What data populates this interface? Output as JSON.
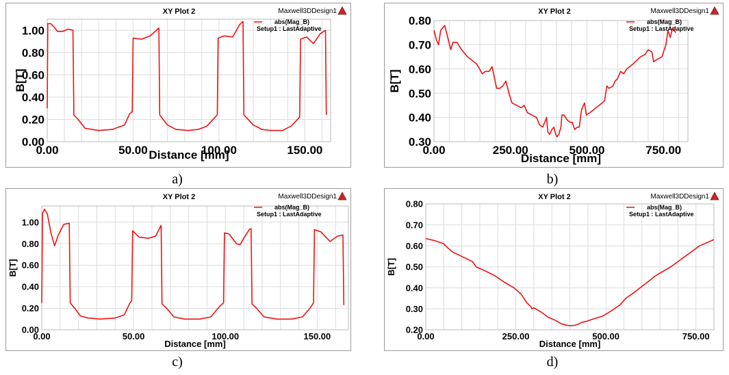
{
  "colors": {
    "series": "#ee1111",
    "grid": "#dcdcdc",
    "border": "#9a9a9a"
  },
  "chart_data": [
    {
      "type": "line",
      "panel_label": "a)",
      "title": "XY Plot 2",
      "brand": "Maxwell3DDesign1",
      "logo_icon": "ansys-triangle-logo",
      "legend": {
        "series_label": "abs(Mag_B)",
        "setup_label": "Setup1 : LastAdaptive",
        "placement": "top-right"
      },
      "xlabel": "Distance [mm]",
      "ylabel": "B[T]",
      "xlim": [
        0,
        165
      ],
      "ylim": [
        0,
        1.1
      ],
      "xticks": [
        0,
        50,
        100,
        150
      ],
      "xtick_labels": [
        "0.00",
        "50.00",
        "100.00",
        "150.00"
      ],
      "yticks": [
        0,
        0.2,
        0.4,
        0.6,
        0.8,
        1.0
      ],
      "ytick_labels": [
        "0.00",
        "0.20",
        "0.40",
        "0.60",
        "0.80",
        "1.00"
      ],
      "grid": true,
      "series": [
        {
          "points": [
            [
              0,
              0.3
            ],
            [
              0.3,
              1.06
            ],
            [
              2,
              1.06
            ],
            [
              4,
              1.03
            ],
            [
              6,
              0.99
            ],
            [
              9,
              0.99
            ],
            [
              12,
              1.01
            ],
            [
              15,
              1.0
            ],
            [
              15.5,
              0.24
            ],
            [
              18,
              0.2
            ],
            [
              22,
              0.12
            ],
            [
              30,
              0.1
            ],
            [
              38,
              0.11
            ],
            [
              45,
              0.15
            ],
            [
              48,
              0.25
            ],
            [
              49.5,
              0.27
            ],
            [
              50,
              0.93
            ],
            [
              55,
              0.92
            ],
            [
              60,
              0.95
            ],
            [
              65,
              1.02
            ],
            [
              65.5,
              0.24
            ],
            [
              70,
              0.15
            ],
            [
              75,
              0.11
            ],
            [
              82,
              0.1
            ],
            [
              88,
              0.11
            ],
            [
              93,
              0.14
            ],
            [
              99,
              0.24
            ],
            [
              99.5,
              0.93
            ],
            [
              103,
              0.95
            ],
            [
              108,
              0.94
            ],
            [
              112,
              1.05
            ],
            [
              114,
              1.08
            ],
            [
              114.5,
              0.24
            ],
            [
              120,
              0.15
            ],
            [
              125,
              0.11
            ],
            [
              130,
              0.1
            ],
            [
              137,
              0.1
            ],
            [
              142,
              0.14
            ],
            [
              147,
              0.22
            ],
            [
              147.5,
              0.92
            ],
            [
              151,
              0.94
            ],
            [
              155,
              0.88
            ],
            [
              159,
              0.97
            ],
            [
              162,
              1.0
            ],
            [
              162.5,
              0.24
            ]
          ]
        }
      ]
    },
    {
      "type": "line",
      "panel_label": "b)",
      "title": "XY Plot 2",
      "brand": "Maxwell3DDesign1",
      "logo_icon": "ansys-triangle-logo",
      "legend": {
        "series_label": "abs(Mag_B)",
        "setup_label": "Setup1 : LastAdaptive",
        "placement": "top-right"
      },
      "xlabel": "Distance [mm]",
      "ylabel": "B[T]",
      "xlim": [
        0,
        830
      ],
      "ylim": [
        0.3,
        0.8
      ],
      "xticks": [
        0,
        250,
        500,
        750
      ],
      "xtick_labels": [
        "0.00",
        "250.00",
        "500.00",
        "750.00"
      ],
      "yticks": [
        0.3,
        0.4,
        0.5,
        0.6,
        0.7,
        0.8
      ],
      "ytick_labels": [
        "0.30",
        "0.40",
        "0.50",
        "0.60",
        "0.70",
        "0.80"
      ],
      "grid": true,
      "series": [
        {
          "points": [
            [
              0,
              0.76
            ],
            [
              8,
              0.72
            ],
            [
              15,
              0.7
            ],
            [
              22,
              0.76
            ],
            [
              35,
              0.78
            ],
            [
              45,
              0.73
            ],
            [
              55,
              0.68
            ],
            [
              62,
              0.71
            ],
            [
              75,
              0.71
            ],
            [
              90,
              0.68
            ],
            [
              110,
              0.65
            ],
            [
              140,
              0.62
            ],
            [
              158,
              0.58
            ],
            [
              168,
              0.59
            ],
            [
              180,
              0.59
            ],
            [
              190,
              0.61
            ],
            [
              205,
              0.52
            ],
            [
              215,
              0.52
            ],
            [
              225,
              0.53
            ],
            [
              235,
              0.55
            ],
            [
              245,
              0.5
            ],
            [
              255,
              0.46
            ],
            [
              270,
              0.45
            ],
            [
              285,
              0.44
            ],
            [
              295,
              0.45
            ],
            [
              305,
              0.42
            ],
            [
              320,
              0.41
            ],
            [
              335,
              0.4
            ],
            [
              345,
              0.37
            ],
            [
              355,
              0.36
            ],
            [
              362,
              0.38
            ],
            [
              368,
              0.4
            ],
            [
              372,
              0.34
            ],
            [
              378,
              0.33
            ],
            [
              385,
              0.35
            ],
            [
              392,
              0.36
            ],
            [
              398,
              0.33
            ],
            [
              402,
              0.32
            ],
            [
              408,
              0.33
            ],
            [
              415,
              0.36
            ],
            [
              418,
              0.41
            ],
            [
              425,
              0.41
            ],
            [
              435,
              0.39
            ],
            [
              445,
              0.38
            ],
            [
              452,
              0.38
            ],
            [
              460,
              0.35
            ],
            [
              468,
              0.36
            ],
            [
              475,
              0.36
            ],
            [
              482,
              0.43
            ],
            [
              492,
              0.46
            ],
            [
              498,
              0.41
            ],
            [
              510,
              0.42
            ],
            [
              530,
              0.44
            ],
            [
              550,
              0.46
            ],
            [
              558,
              0.47
            ],
            [
              565,
              0.53
            ],
            [
              572,
              0.52
            ],
            [
              585,
              0.53
            ],
            [
              592,
              0.55
            ],
            [
              600,
              0.56
            ],
            [
              610,
              0.59
            ],
            [
              620,
              0.58
            ],
            [
              630,
              0.6
            ],
            [
              650,
              0.62
            ],
            [
              675,
              0.65
            ],
            [
              690,
              0.66
            ],
            [
              700,
              0.68
            ],
            [
              712,
              0.67
            ],
            [
              718,
              0.63
            ],
            [
              730,
              0.64
            ],
            [
              745,
              0.65
            ],
            [
              758,
              0.7
            ],
            [
              765,
              0.76
            ],
            [
              772,
              0.73
            ],
            [
              780,
              0.77
            ],
            [
              790,
              0.75
            ]
          ]
        }
      ]
    },
    {
      "type": "line",
      "panel_label": "c)",
      "title": "XY Plot 2",
      "brand": "Maxwell3DDesign1",
      "logo_icon": "ansys-triangle-logo",
      "legend": {
        "series_label": "abs(Mag_B)",
        "setup_label": "Setup1 : LastAdaptive",
        "placement": "top-right"
      },
      "xlabel": "Distance [mm]",
      "ylabel": "B[T]",
      "xlim": [
        0,
        167
      ],
      "ylim": [
        0,
        1.15
      ],
      "xticks": [
        0,
        50,
        100,
        150
      ],
      "xtick_labels": [
        "0.00",
        "50.00",
        "100.00",
        "150.00"
      ],
      "yticks": [
        0,
        0.2,
        0.4,
        0.6,
        0.8,
        1.0
      ],
      "ytick_labels": [
        "0.00",
        "0.20",
        "0.40",
        "0.60",
        "0.80",
        "1.00"
      ],
      "grid": true,
      "series": [
        {
          "points": [
            [
              0,
              0.25
            ],
            [
              0.4,
              1.08
            ],
            [
              1.5,
              1.12
            ],
            [
              3,
              1.08
            ],
            [
              5,
              0.9
            ],
            [
              7,
              0.78
            ],
            [
              9,
              0.88
            ],
            [
              12,
              0.98
            ],
            [
              15,
              0.99
            ],
            [
              15.5,
              0.25
            ],
            [
              18,
              0.2
            ],
            [
              21,
              0.13
            ],
            [
              25,
              0.11
            ],
            [
              32,
              0.1
            ],
            [
              40,
              0.11
            ],
            [
              45,
              0.14
            ],
            [
              48,
              0.25
            ],
            [
              49,
              0.27
            ],
            [
              49.5,
              0.92
            ],
            [
              53,
              0.86
            ],
            [
              58,
              0.85
            ],
            [
              62,
              0.87
            ],
            [
              65,
              0.97
            ],
            [
              65.5,
              0.24
            ],
            [
              68,
              0.2
            ],
            [
              72,
              0.12
            ],
            [
              78,
              0.1
            ],
            [
              86,
              0.1
            ],
            [
              92,
              0.12
            ],
            [
              97,
              0.22
            ],
            [
              99,
              0.25
            ],
            [
              99.5,
              0.9
            ],
            [
              102,
              0.89
            ],
            [
              106,
              0.8
            ],
            [
              108,
              0.79
            ],
            [
              110,
              0.85
            ],
            [
              113,
              0.93
            ],
            [
              114,
              0.94
            ],
            [
              114.5,
              0.24
            ],
            [
              117,
              0.2
            ],
            [
              121,
              0.12
            ],
            [
              128,
              0.1
            ],
            [
              136,
              0.1
            ],
            [
              142,
              0.12
            ],
            [
              146,
              0.2
            ],
            [
              148,
              0.25
            ],
            [
              148.5,
              0.93
            ],
            [
              152,
              0.91
            ],
            [
              157,
              0.82
            ],
            [
              161,
              0.87
            ],
            [
              164,
              0.88
            ],
            [
              164.5,
              0.23
            ]
          ]
        }
      ]
    },
    {
      "type": "line",
      "panel_label": "d)",
      "title": "XY Plot 2",
      "brand": "Maxwell3DDesign1",
      "logo_icon": "ansys-triangle-logo",
      "legend": {
        "series_label": "abs(Mag_B)",
        "setup_label": "Setup1 : LastAdaptive",
        "placement": "top-right"
      },
      "xlabel": "Distance [mm]",
      "ylabel": "B[T]",
      "xlim": [
        0,
        800
      ],
      "ylim": [
        0.2,
        0.8
      ],
      "xticks": [
        0,
        250,
        500,
        750
      ],
      "xtick_labels": [
        "0.00",
        "250.00",
        "500.00",
        "750.00"
      ],
      "yticks": [
        0.2,
        0.3,
        0.4,
        0.5,
        0.6,
        0.7,
        0.8
      ],
      "ytick_labels": [
        "0.20",
        "0.30",
        "0.40",
        "0.50",
        "0.60",
        "0.70",
        "0.80"
      ],
      "grid": true,
      "series": [
        {
          "points": [
            [
              0,
              0.635
            ],
            [
              25,
              0.625
            ],
            [
              50,
              0.61
            ],
            [
              55,
              0.6
            ],
            [
              75,
              0.57
            ],
            [
              100,
              0.55
            ],
            [
              130,
              0.525
            ],
            [
              140,
              0.5
            ],
            [
              160,
              0.485
            ],
            [
              190,
              0.46
            ],
            [
              220,
              0.425
            ],
            [
              245,
              0.4
            ],
            [
              265,
              0.37
            ],
            [
              280,
              0.33
            ],
            [
              292,
              0.31
            ],
            [
              295,
              0.3
            ],
            [
              300,
              0.305
            ],
            [
              320,
              0.285
            ],
            [
              340,
              0.26
            ],
            [
              360,
              0.245
            ],
            [
              375,
              0.23
            ],
            [
              390,
              0.222
            ],
            [
              400,
              0.22
            ],
            [
              415,
              0.222
            ],
            [
              425,
              0.228
            ],
            [
              432,
              0.235
            ],
            [
              445,
              0.24
            ],
            [
              465,
              0.252
            ],
            [
              490,
              0.265
            ],
            [
              515,
              0.29
            ],
            [
              540,
              0.32
            ],
            [
              555,
              0.35
            ],
            [
              580,
              0.38
            ],
            [
              610,
              0.42
            ],
            [
              640,
              0.46
            ],
            [
              680,
              0.5
            ],
            [
              720,
              0.55
            ],
            [
              760,
              0.6
            ],
            [
              800,
              0.63
            ]
          ]
        }
      ]
    }
  ]
}
